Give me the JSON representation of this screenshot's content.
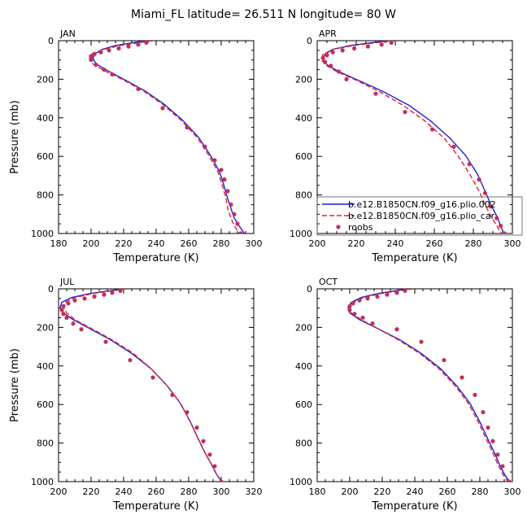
{
  "figure": {
    "title": "Miami_FL  latitude= 26.511 N longitude= 80 W"
  },
  "legend": {
    "entries": [
      {
        "label": "b.e12.B1850CN.f09_g16.plio.002",
        "color": "#1f1fd6",
        "style": "solid"
      },
      {
        "label": "b.e12.B1850CN.f09_g16.plio_car",
        "color": "#e0242a",
        "style": "dashed"
      },
      {
        "label": "roobs",
        "color": "#c0305a",
        "style": "dot"
      }
    ]
  },
  "chart_data": [
    {
      "type": "line",
      "panel": "JAN",
      "xlabel": "Temperature (K)",
      "ylabel": "Pressure (mb)",
      "xlim": [
        180,
        300
      ],
      "ylim": [
        1000,
        0
      ],
      "xticks": [
        180,
        200,
        220,
        240,
        260,
        280,
        300
      ],
      "yticks": [
        0,
        200,
        400,
        600,
        800,
        1000
      ],
      "series": [
        {
          "name": "b.e12.B1850CN.f09_g16.plio.002",
          "color": "#1f1fd6",
          "style": "solid",
          "x": [
            233,
            226,
            215,
            207,
            203,
            201,
            203,
            210,
            220,
            233,
            245,
            256,
            266,
            273,
            279,
            282,
            284,
            286,
            288,
            291,
            295
          ],
          "y": [
            0,
            10,
            25,
            45,
            65,
            90,
            120,
            155,
            200,
            260,
            330,
            410,
            500,
            590,
            680,
            760,
            820,
            870,
            920,
            960,
            1010
          ]
        },
        {
          "name": "b.e12.B1850CN.f09_g16.plio_car",
          "color": "#e0242a",
          "style": "dashed",
          "x": [
            238,
            230,
            218,
            208,
            201,
            199,
            201,
            208,
            219,
            232,
            244,
            255,
            265,
            272,
            278,
            281,
            283,
            284,
            286,
            288,
            292
          ],
          "y": [
            0,
            10,
            25,
            45,
            65,
            90,
            120,
            155,
            200,
            260,
            330,
            410,
            500,
            590,
            680,
            760,
            820,
            870,
            920,
            960,
            1010
          ]
        },
        {
          "name": "roobs",
          "color": "#c0305a",
          "style": "dot",
          "x": [
            234,
            229,
            223,
            217,
            211,
            206,
            202,
            200,
            200,
            203,
            208,
            213,
            229,
            244,
            259,
            270,
            276,
            280,
            282,
            284,
            286,
            288,
            290,
            292
          ],
          "y": [
            10,
            20,
            30,
            40,
            50,
            60,
            70,
            80,
            100,
            125,
            150,
            175,
            250,
            350,
            450,
            550,
            620,
            670,
            720,
            780,
            850,
            900,
            950,
            1000
          ]
        }
      ]
    },
    {
      "type": "line",
      "panel": "APR",
      "xlabel": "Temperature (K)",
      "ylabel": "",
      "xlim": [
        200,
        300
      ],
      "ylim": [
        1000,
        0
      ],
      "xticks": [
        200,
        220,
        240,
        260,
        280,
        300
      ],
      "yticks": [
        0,
        200,
        400,
        600,
        800,
        1000
      ],
      "series": [
        {
          "name": "b.e12.B1850CN.f09_g16.plio.002",
          "color": "#1f1fd6",
          "style": "solid",
          "x": [
            236,
            228,
            217,
            208,
            204,
            203,
            205,
            211,
            221,
            234,
            247,
            258,
            268,
            276,
            282,
            286,
            289,
            292,
            294,
            296
          ],
          "y": [
            0,
            10,
            25,
            45,
            70,
            95,
            125,
            160,
            205,
            265,
            335,
            415,
            505,
            595,
            690,
            780,
            850,
            910,
            960,
            1010
          ]
        },
        {
          "name": "b.e12.B1850CN.f09_g16.plio_car",
          "color": "#e0242a",
          "style": "dashed",
          "x": [
            240,
            231,
            219,
            208,
            203,
            202,
            204,
            210,
            220,
            232,
            244,
            255,
            265,
            272,
            278,
            283,
            286,
            289,
            292,
            295
          ],
          "y": [
            0,
            10,
            25,
            45,
            70,
            95,
            125,
            160,
            205,
            265,
            335,
            415,
            505,
            595,
            690,
            780,
            850,
            910,
            960,
            1010
          ]
        },
        {
          "name": "roobs",
          "color": "#c0305a",
          "style": "dot",
          "x": [
            238,
            233,
            226,
            219,
            213,
            208,
            205,
            203,
            204,
            207,
            211,
            215,
            230,
            245,
            259,
            270,
            278,
            283,
            286,
            289,
            292,
            294,
            296
          ],
          "y": [
            10,
            20,
            30,
            40,
            50,
            60,
            75,
            90,
            110,
            130,
            160,
            200,
            275,
            370,
            460,
            550,
            640,
            720,
            790,
            860,
            920,
            960,
            1000
          ]
        }
      ]
    },
    {
      "type": "line",
      "panel": "JUL",
      "xlabel": "Temperature (K)",
      "ylabel": "Pressure (mb)",
      "xlim": [
        200,
        320
      ],
      "ylim": [
        1000,
        0
      ],
      "xticks": [
        200,
        220,
        240,
        260,
        280,
        300,
        320
      ],
      "yticks": [
        0,
        200,
        400,
        600,
        800,
        1000
      ],
      "series": [
        {
          "name": "b.e12.B1850CN.f09_g16.plio.002",
          "color": "#1f1fd6",
          "style": "solid",
          "x": [
            240,
            231,
            219,
            208,
            202,
            201,
            203,
            209,
            219,
            232,
            245,
            257,
            267,
            275,
            281,
            286,
            290,
            294,
            297,
            301
          ],
          "y": [
            0,
            10,
            25,
            45,
            70,
            95,
            125,
            160,
            205,
            265,
            335,
            415,
            505,
            595,
            690,
            780,
            850,
            910,
            960,
            1010
          ]
        },
        {
          "name": "b.e12.B1850CN.f09_g16.plio_car",
          "color": "#e0242a",
          "style": "dashed",
          "x": [
            242,
            233,
            221,
            210,
            204,
            203,
            205,
            210,
            220,
            233,
            246,
            257,
            267,
            275,
            281,
            286,
            290,
            294,
            297,
            301
          ],
          "y": [
            0,
            10,
            25,
            45,
            70,
            95,
            125,
            160,
            205,
            265,
            335,
            415,
            505,
            595,
            690,
            780,
            850,
            910,
            960,
            1010
          ]
        },
        {
          "name": "roobs",
          "color": "#c0305a",
          "style": "dot",
          "x": [
            238,
            233,
            228,
            222,
            216,
            210,
            206,
            203,
            202,
            203,
            205,
            209,
            214,
            229,
            244,
            258,
            270,
            279,
            285,
            289,
            293,
            296,
            300
          ],
          "y": [
            10,
            20,
            30,
            40,
            50,
            60,
            75,
            90,
            110,
            130,
            150,
            180,
            210,
            275,
            370,
            460,
            550,
            640,
            720,
            790,
            860,
            920,
            1000
          ]
        }
      ]
    },
    {
      "type": "line",
      "panel": "OCT",
      "xlabel": "Temperature (K)",
      "ylabel": "",
      "xlim": [
        180,
        300
      ],
      "ylim": [
        1000,
        0
      ],
      "xticks": [
        180,
        200,
        220,
        240,
        260,
        280,
        300
      ],
      "yticks": [
        0,
        200,
        400,
        600,
        800,
        1000
      ],
      "series": [
        {
          "name": "b.e12.B1850CN.f09_g16.plio.002",
          "color": "#1f1fd6",
          "style": "solid",
          "x": [
            236,
            228,
            217,
            207,
            201,
            199,
            200,
            206,
            217,
            231,
            244,
            256,
            266,
            274,
            280,
            285,
            289,
            292,
            295,
            299
          ],
          "y": [
            0,
            10,
            25,
            45,
            70,
            95,
            125,
            160,
            205,
            265,
            335,
            415,
            505,
            595,
            690,
            780,
            850,
            910,
            960,
            1010
          ]
        },
        {
          "name": "b.e12.B1850CN.f09_g16.plio_car",
          "color": "#e0242a",
          "style": "dashed",
          "x": [
            239,
            231,
            219,
            209,
            202,
            200,
            201,
            207,
            217,
            230,
            243,
            255,
            265,
            273,
            279,
            284,
            288,
            291,
            294,
            298
          ],
          "y": [
            0,
            10,
            25,
            45,
            70,
            95,
            125,
            160,
            205,
            265,
            335,
            415,
            505,
            595,
            690,
            780,
            850,
            910,
            960,
            1010
          ]
        },
        {
          "name": "roobs",
          "color": "#c0305a",
          "style": "dot",
          "x": [
            234,
            229,
            223,
            217,
            211,
            206,
            202,
            200,
            200,
            203,
            208,
            214,
            229,
            244,
            258,
            269,
            277,
            282,
            285,
            288,
            291,
            294,
            298
          ],
          "y": [
            10,
            20,
            30,
            40,
            50,
            60,
            75,
            90,
            110,
            130,
            150,
            180,
            210,
            275,
            370,
            460,
            550,
            640,
            720,
            790,
            860,
            920,
            1000
          ]
        }
      ]
    }
  ]
}
